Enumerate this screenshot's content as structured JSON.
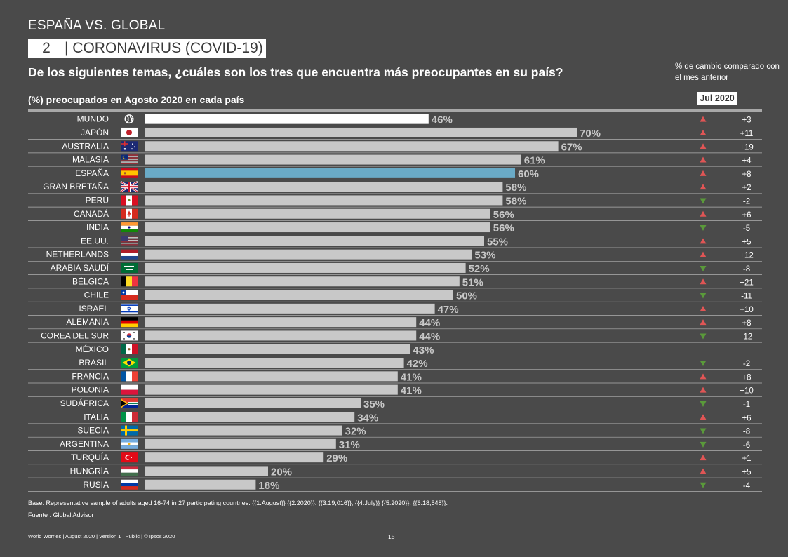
{
  "header": {
    "section": "ESPAÑA VS. GLOBAL",
    "topic_number": "2",
    "topic_title": "| CORONAVIRUS (COVID-19)",
    "question": "De los siguientes temas, ¿cuáles son los tres que encuentra más preocupantes  en su país?",
    "change_note": "% de cambio comparado con el mes anterior",
    "subtitle": "(%) preocupados en Agosto  2020 en cada país",
    "compare_month": "Jul 2020"
  },
  "colors": {
    "background": "#4a4a4a",
    "bar_default": "#c8c8c8",
    "bar_world": "#ffffff",
    "bar_highlight": "#6aaac6",
    "up": "#e05555",
    "down": "#5a9a3a"
  },
  "chart_data": {
    "type": "bar",
    "orientation": "horizontal",
    "title": "(%) preocupados en Agosto  2020 en cada país",
    "xlim": [
      0,
      100
    ],
    "value_suffix": "%",
    "categories": [
      "MUNDO",
      "JAPÓN",
      "AUSTRALIA",
      "MALASIA",
      "ESPAÑA",
      "GRAN BRETAÑA",
      "PERÚ",
      "CANADÁ",
      "INDIA",
      "EE.UU.",
      "NETHERLANDS",
      "ARABIA SAUDÍ",
      "BÉLGICA",
      "CHILE",
      "ISRAEL",
      "ALEMANIA",
      "COREA DEL SUR",
      "MÉXICO",
      "BRASIL",
      "FRANCIA",
      "POLONIA",
      "SUDÁFRICA",
      "ITALIA",
      "SUECIA",
      "ARGENTINA",
      "TURQUÍA",
      "HUNGRÍA",
      "RUSIA"
    ],
    "values": [
      46,
      70,
      67,
      61,
      60,
      58,
      58,
      56,
      56,
      55,
      53,
      52,
      51,
      50,
      47,
      44,
      44,
      43,
      42,
      41,
      41,
      35,
      34,
      32,
      31,
      29,
      20,
      18
    ],
    "highlight": [
      "MUNDO",
      "ESPAÑA"
    ],
    "change_vs_jul_2020": [
      "+3",
      "+11",
      "+19",
      "+4",
      "+8",
      "+2",
      "-2",
      "+6",
      "-5",
      "+5",
      "+12",
      "-8",
      "+21",
      "-11",
      "+10",
      "+8",
      "-12",
      "=",
      "-2",
      "+8",
      "+10",
      "-1",
      "+6",
      "-8",
      "-6",
      "+1",
      "+5",
      "-4"
    ],
    "change_direction": [
      "up",
      "up",
      "up",
      "up",
      "up",
      "up",
      "down",
      "up",
      "down",
      "up",
      "up",
      "down",
      "up",
      "down",
      "up",
      "up",
      "down",
      "none",
      "down",
      "up",
      "up",
      "down",
      "up",
      "down",
      "down",
      "up",
      "up",
      "down"
    ],
    "flags": [
      "globe-icon",
      "flag-japan-icon",
      "flag-australia-icon",
      "flag-malaysia-icon",
      "flag-spain-icon",
      "flag-uk-icon",
      "flag-peru-icon",
      "flag-canada-icon",
      "flag-india-icon",
      "flag-usa-icon",
      "flag-netherlands-icon",
      "flag-saudi-arabia-icon",
      "flag-belgium-icon",
      "flag-chile-icon",
      "flag-israel-icon",
      "flag-germany-icon",
      "flag-south-korea-icon",
      "flag-mexico-icon",
      "flag-brazil-icon",
      "flag-france-icon",
      "flag-poland-icon",
      "flag-south-africa-icon",
      "flag-italy-icon",
      "flag-sweden-icon",
      "flag-argentina-icon",
      "flag-turkey-icon",
      "flag-hungary-icon",
      "flag-russia-icon"
    ]
  },
  "footnotes": {
    "base": "Base: Representative sample of adults aged 16-74 in 27 participating countries. {{1.August}} {{2.2020}}: {{3.19,016}}; {{4.July}} {{5.2020}}: {{6.18,548}}.",
    "source": "Fuente : Global Advisor"
  },
  "footer": {
    "meta": "World Worries  |  August 2020  |  Version 1  |  Public | © Ipsos 2020",
    "page": "15"
  }
}
